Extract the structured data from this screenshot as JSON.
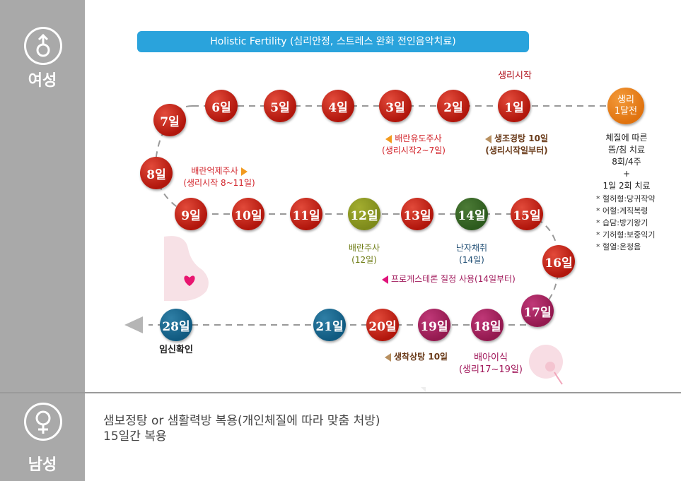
{
  "sidebar": {
    "female_label": "여성",
    "male_label": "남성",
    "female_symbol_icon": "female-symbol-icon",
    "male_symbol_icon": "male-symbol-icon"
  },
  "banner": {
    "title": "Holistic Fertility (심리안정, 스트레스 완화 전인음악치료)"
  },
  "days": {
    "d1": "1일",
    "d2": "2일",
    "d3": "3일",
    "d4": "4일",
    "d5": "5일",
    "d6": "6일",
    "d7": "7일",
    "d8": "8일",
    "d9": "9일",
    "d10": "10일",
    "d11": "11일",
    "d12": "12일",
    "d13": "13일",
    "d14": "14일",
    "d15": "15일",
    "d16": "16일",
    "d17": "17일",
    "d18": "18일",
    "d19": "19일",
    "d20": "20일",
    "d21": "21일",
    "d28": "28일"
  },
  "pre_cycle": {
    "line1": "생리",
    "line2": "1달전"
  },
  "labels": {
    "menstruation_start": "생리시작",
    "ovulation_induction_line1": "배란유도주사",
    "ovulation_induction_line2": "(생리시작2~7일)",
    "saengjo_line1": "생조경탕 10일",
    "saengjo_line2": "(생리시작일부터)",
    "ovulation_suppress_line1": "배란억제주사",
    "ovulation_suppress_line2": "(생리시작 8~11일)",
    "ovulation_shot_line1": "배란주사",
    "ovulation_shot_line2": "(12일)",
    "egg_retrieval_line1": "난자채취",
    "egg_retrieval_line2": "(14일)",
    "progesterone": "프로게스테론 질정 사용(14일부터)",
    "saengchak": "생착상탕 10일",
    "embryo_transfer_line1": "배아이식",
    "embryo_transfer_line2": "(생리17~19일)",
    "pregnancy_confirm": "임신확인"
  },
  "treatment": {
    "line1": "체질에 따른",
    "line2": "뜸/침 치료",
    "line3": "8회/4주",
    "plus": "+",
    "line4": "1일 2회 치료",
    "items": [
      "* 혈허형:당귀작약",
      "* 어혈:계직복령",
      "* 습담:방기왕기",
      "* 기허형:보중익기",
      "* 혈열:온청음"
    ]
  },
  "male": {
    "line1": "샘보정탕 or 샘활력방 복용(개인체질에 따라 맞춤 처방)",
    "line2": "15일간 복용"
  },
  "colors": {
    "day_red": "#c21f12",
    "day_olive": "#8c9a22",
    "day_green": "#365f24",
    "day_magenta": "#a21f5c",
    "day_teal": "#13658c",
    "pre_cycle_orange": "#ea7e1a",
    "banner_blue": "#2aa3dc",
    "sidebar_gray": "#a9a9a9"
  }
}
